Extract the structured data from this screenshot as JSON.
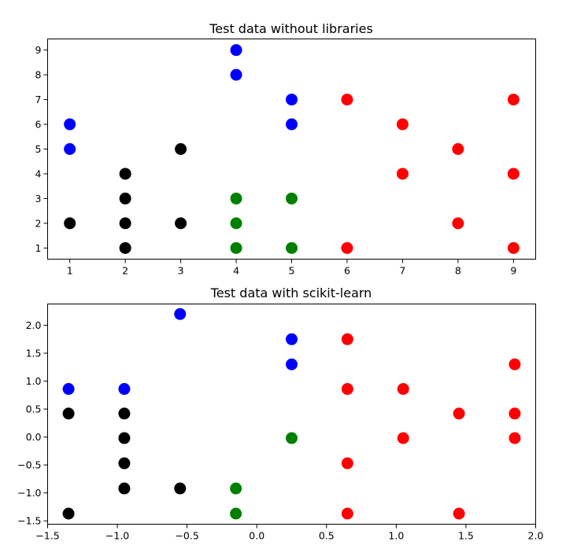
{
  "chart_data": [
    {
      "type": "scatter",
      "title": "Test data without libraries",
      "xlabel": "",
      "ylabel": "",
      "xlim": [
        0.6,
        9.4
      ],
      "ylim": [
        0.55,
        9.45
      ],
      "xticks": [
        1,
        2,
        3,
        4,
        5,
        6,
        7,
        8,
        9
      ],
      "yticks": [
        1,
        2,
        3,
        4,
        5,
        6,
        7,
        8,
        9
      ],
      "grid": false,
      "series": [
        {
          "color": "#0000ff",
          "points": [
            [
              4,
              9
            ],
            [
              4,
              8
            ],
            [
              5,
              7
            ],
            [
              1,
              6
            ],
            [
              5,
              6
            ],
            [
              1,
              5
            ]
          ]
        },
        {
          "color": "#ff0000",
          "points": [
            [
              6,
              7
            ],
            [
              9,
              7
            ],
            [
              7,
              6
            ],
            [
              8,
              5
            ],
            [
              7,
              4
            ],
            [
              9,
              4
            ],
            [
              8,
              2
            ],
            [
              6,
              1
            ],
            [
              9,
              1
            ]
          ]
        },
        {
          "color": "#000000",
          "points": [
            [
              3,
              5
            ],
            [
              2,
              4
            ],
            [
              2,
              3
            ],
            [
              1,
              2
            ],
            [
              2,
              2
            ],
            [
              3,
              2
            ],
            [
              2,
              1
            ]
          ]
        },
        {
          "color": "#008000",
          "points": [
            [
              4,
              3
            ],
            [
              5,
              3
            ],
            [
              4,
              2
            ],
            [
              4,
              1
            ],
            [
              5,
              1
            ]
          ]
        }
      ]
    },
    {
      "type": "scatter",
      "title": "Test data with scikit-learn",
      "xlabel": "",
      "ylabel": "",
      "xlim": [
        -1.5,
        2.0
      ],
      "ylim": [
        -1.56,
        2.38
      ],
      "xticks": [
        -1.5,
        -1.0,
        -0.5,
        0.0,
        0.5,
        1.0,
        1.5,
        2.0
      ],
      "xtick_labels": [
        "−1.5",
        "−1.0",
        "−0.5",
        "0.0",
        "0.5",
        "1.0",
        "1.5",
        "2.0"
      ],
      "yticks": [
        -1.5,
        -1.0,
        -0.5,
        0.0,
        0.5,
        1.0,
        1.5,
        2.0
      ],
      "ytick_labels": [
        "−1.5",
        "−1.0",
        "−0.5",
        "0.0",
        "0.5",
        "1.0",
        "1.5",
        "2.0"
      ],
      "grid": false,
      "series": [
        {
          "color": "#0000ff",
          "points": [
            [
              -0.55,
              2.2
            ],
            [
              0.25,
              1.75
            ],
            [
              0.25,
              1.3
            ],
            [
              -1.35,
              0.86
            ],
            [
              -0.95,
              0.86
            ]
          ]
        },
        {
          "color": "#ff0000",
          "points": [
            [
              0.65,
              1.75
            ],
            [
              1.85,
              1.3
            ],
            [
              0.65,
              0.86
            ],
            [
              1.05,
              0.86
            ],
            [
              1.45,
              0.42
            ],
            [
              1.85,
              0.42
            ],
            [
              1.05,
              -0.02
            ],
            [
              1.85,
              -0.02
            ],
            [
              0.65,
              -0.47
            ],
            [
              0.65,
              -1.37
            ],
            [
              1.45,
              -1.37
            ]
          ]
        },
        {
          "color": "#000000",
          "points": [
            [
              -1.35,
              0.42
            ],
            [
              -0.95,
              0.42
            ],
            [
              -0.95,
              -0.02
            ],
            [
              -0.95,
              -0.47
            ],
            [
              -0.95,
              -0.92
            ],
            [
              -0.55,
              -0.92
            ],
            [
              -1.35,
              -1.37
            ]
          ]
        },
        {
          "color": "#008000",
          "points": [
            [
              0.25,
              -0.02
            ],
            [
              -0.15,
              -0.92
            ],
            [
              -0.15,
              -1.37
            ]
          ]
        }
      ]
    }
  ]
}
